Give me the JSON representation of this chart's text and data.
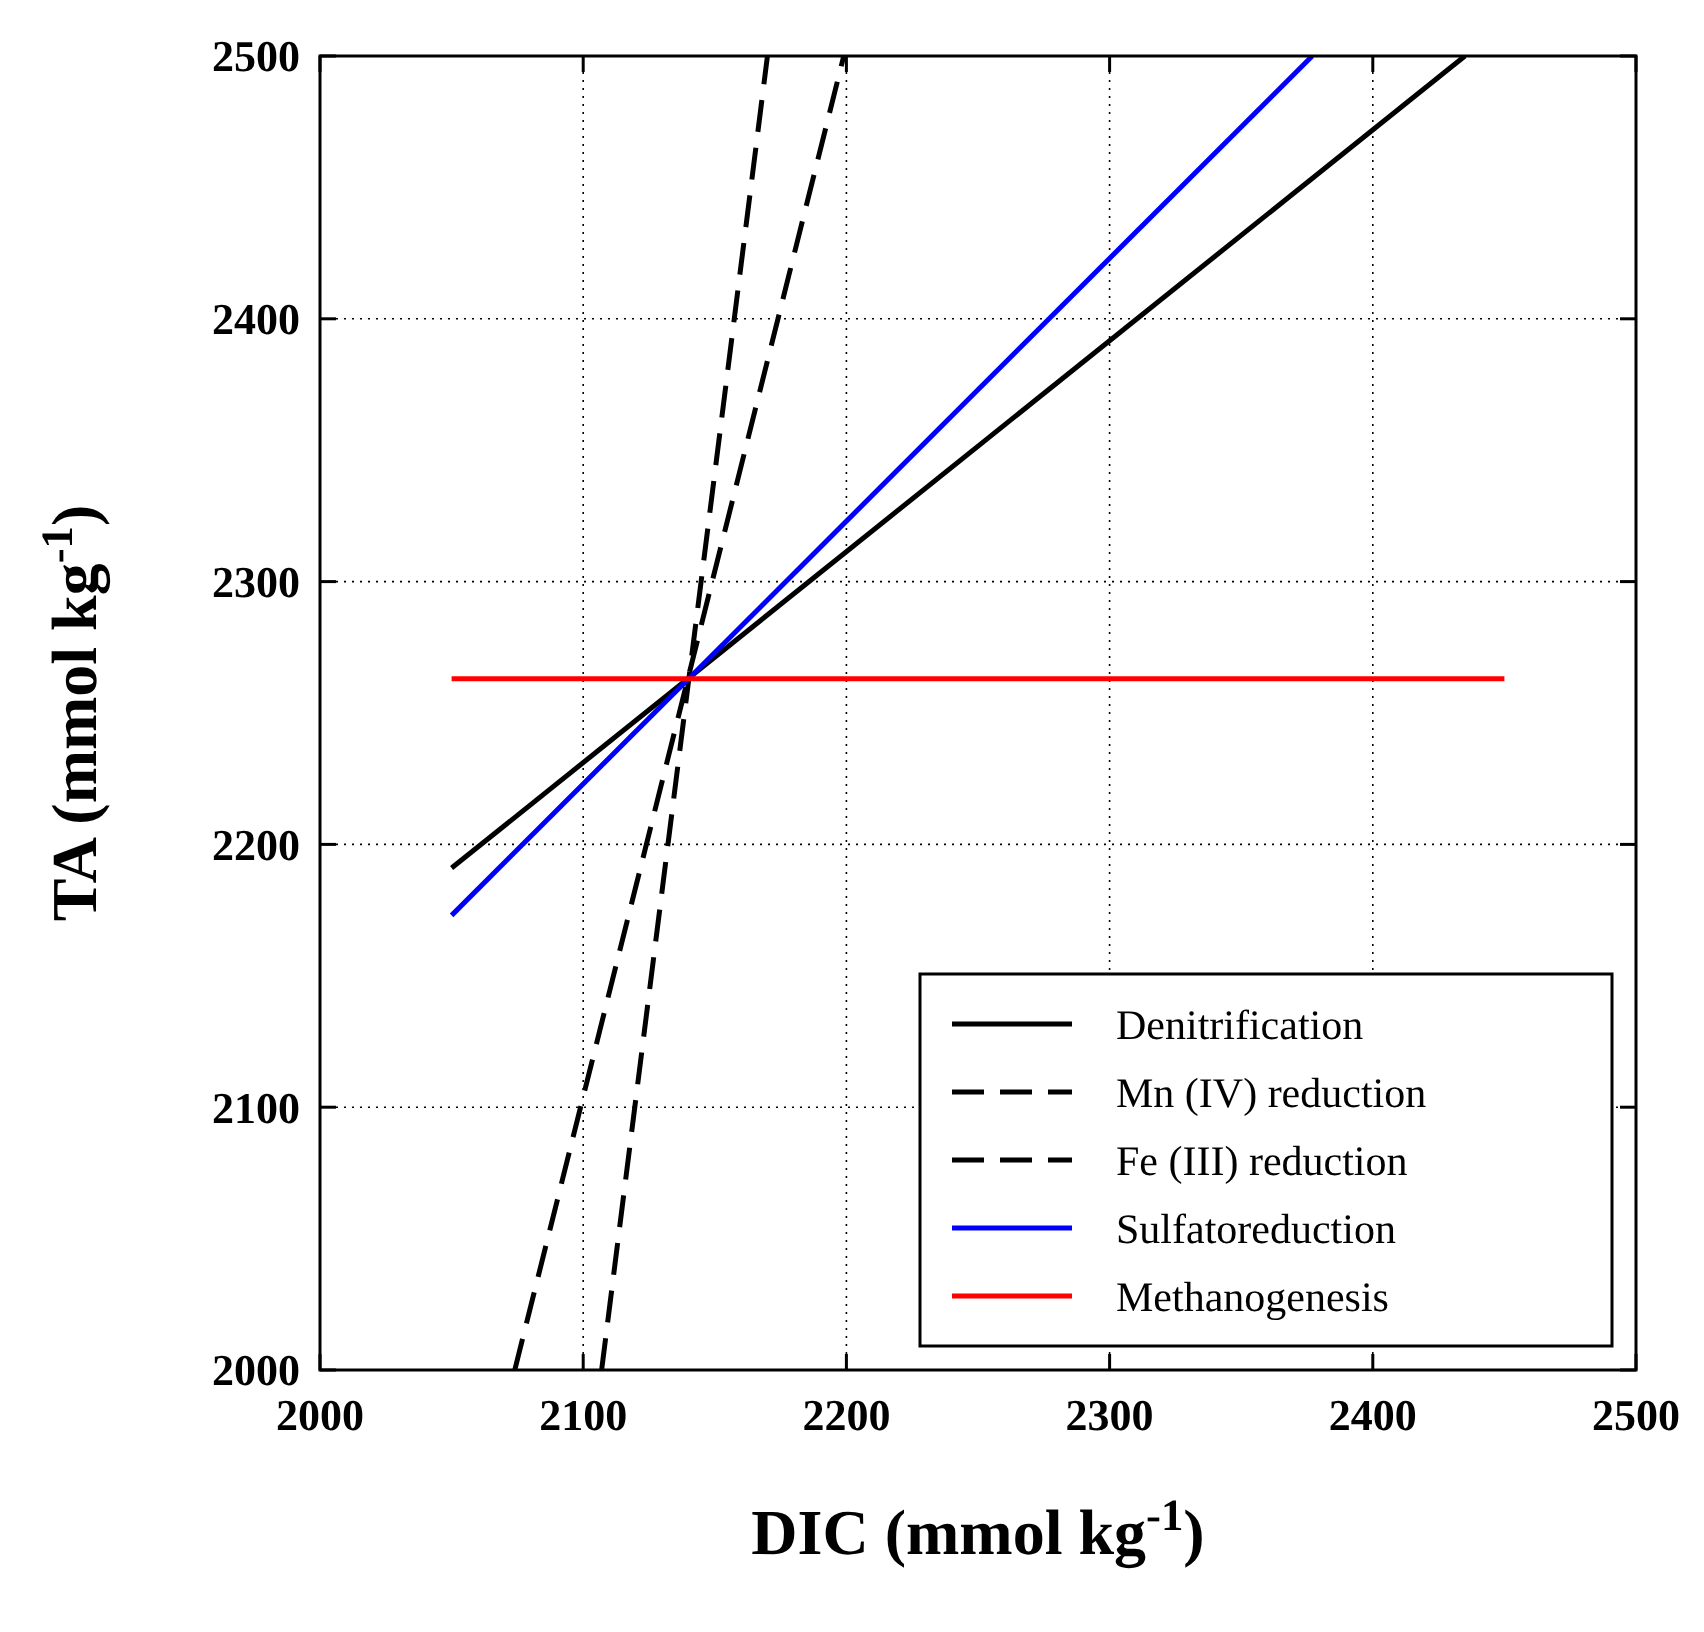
{
  "chart_data": {
    "type": "line",
    "xlabel": "DIC (mmol kg$^{-1}$)",
    "ylabel": "TA (mmol kg$^{-1}$)",
    "xlim": [
      2000,
      2500
    ],
    "xticks": [
      2000,
      2100,
      2200,
      2300,
      2400,
      2500
    ],
    "ylim": [
      2000,
      2500
    ],
    "yticks": [
      2000,
      2100,
      2200,
      2300,
      2400,
      2500
    ],
    "grid": true,
    "legend": "bottom right",
    "marker": "none",
    "series": [
      {
        "name": "Denitrification",
        "color": "#000000",
        "line_style": "solid",
        "x": [
          2050,
          2435
        ],
        "values": [
          2191,
          2500
        ]
      },
      {
        "name": "Mn (IV) reduction",
        "color": "#000000",
        "line_style": "dashed",
        "x": [
          2074,
          2199
        ],
        "values": [
          2000,
          2500
        ]
      },
      {
        "name": "Fe (III) reduction",
        "color": "#000000",
        "line_style": "dashed",
        "x": [
          2107,
          2170
        ],
        "values": [
          2000,
          2500
        ]
      },
      {
        "name": "Sulfatoreduction",
        "color": "#0000ff",
        "line_style": "solid",
        "x": [
          2050,
          2377
        ],
        "values": [
          2173,
          2500
        ]
      },
      {
        "name": "Methanogenesis",
        "color": "#ff0000",
        "line_style": "solid",
        "x": [
          2050,
          2450
        ],
        "values": [
          2263,
          2263
        ]
      }
    ]
  }
}
